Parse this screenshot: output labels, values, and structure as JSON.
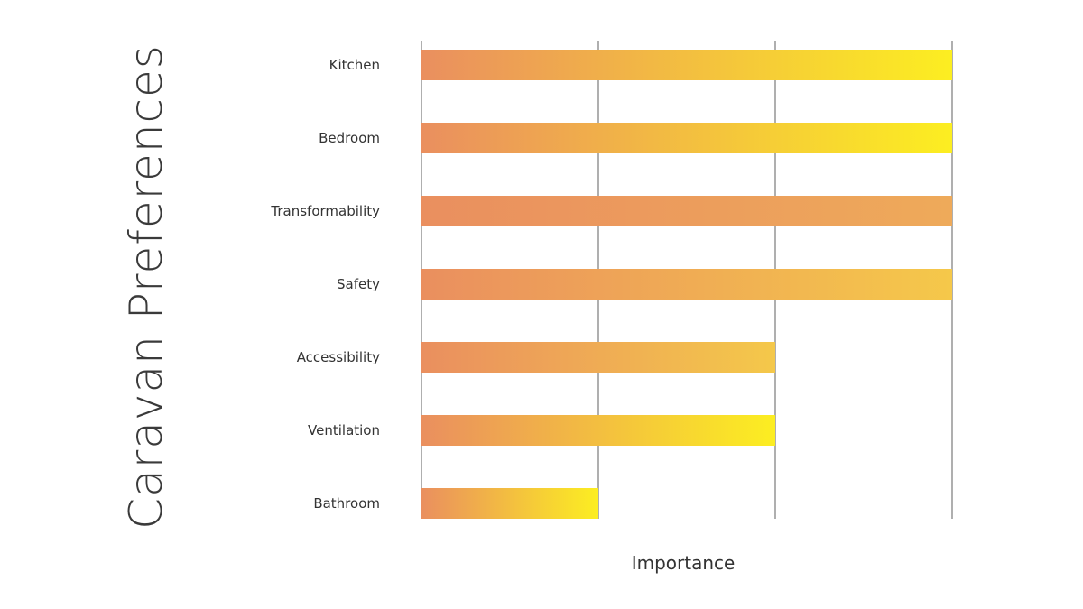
{
  "chart_data": {
    "type": "bar",
    "orientation": "horizontal",
    "title": "Caravan Preferences",
    "xlabel": "Importance",
    "ylabel": "",
    "categories": [
      "Kitchen",
      "Bedroom",
      "Transformability",
      "Safety",
      "Accessibility",
      "Ventilation",
      "Bathroom"
    ],
    "values": [
      3,
      3,
      3,
      3,
      2,
      2,
      1
    ],
    "xlim": [
      0,
      3
    ],
    "grid": "vertical",
    "tick_labels_shown": false,
    "bar_gradient_start": "#ea8f5f",
    "bar_gradient_ends": [
      "#fcee21",
      "#fcee21",
      "#eeaa5a",
      "#f5c84a",
      "#f4c84a",
      "#fcee21",
      "#fcee21"
    ]
  }
}
